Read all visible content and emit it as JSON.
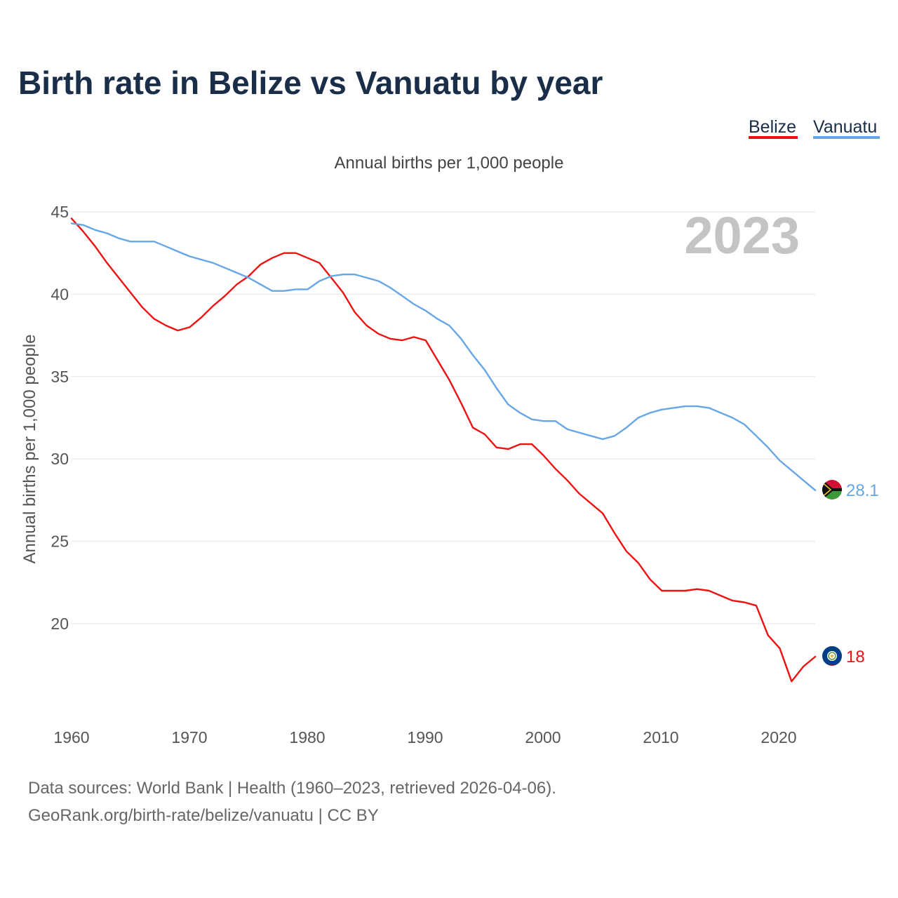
{
  "chart_data": {
    "type": "line",
    "title": "Birth rate in Belize vs Vanuatu by year",
    "subtitle": "Annual births per 1,000 people",
    "ylabel": "Annual births per 1,000 people",
    "xlabel": "",
    "year_stamp": "2023",
    "xlim": [
      1960,
      2023
    ],
    "ylim": [
      15,
      45
    ],
    "x_ticks": [
      1960,
      1970,
      1980,
      1990,
      2000,
      2010,
      2020
    ],
    "y_ticks": [
      20,
      25,
      30,
      35,
      40,
      45
    ],
    "grid": true,
    "legend_position": "top-right",
    "x": [
      1960,
      1961,
      1962,
      1963,
      1964,
      1965,
      1966,
      1967,
      1968,
      1969,
      1970,
      1971,
      1972,
      1973,
      1974,
      1975,
      1976,
      1977,
      1978,
      1979,
      1980,
      1981,
      1982,
      1983,
      1984,
      1985,
      1986,
      1987,
      1988,
      1989,
      1990,
      1991,
      1992,
      1993,
      1994,
      1995,
      1996,
      1997,
      1998,
      1999,
      2000,
      2001,
      2002,
      2003,
      2004,
      2005,
      2006,
      2007,
      2008,
      2009,
      2010,
      2011,
      2012,
      2013,
      2014,
      2015,
      2016,
      2017,
      2018,
      2019,
      2020,
      2021,
      2022,
      2023
    ],
    "series": [
      {
        "name": "Belize",
        "color": "#ee1111",
        "end_label": "18",
        "flag": "belize-flag",
        "values": [
          44.6,
          43.8,
          42.9,
          41.9,
          41.0,
          40.1,
          39.2,
          38.5,
          38.1,
          37.8,
          38.0,
          38.6,
          39.3,
          39.9,
          40.6,
          41.1,
          41.8,
          42.2,
          42.5,
          42.5,
          42.2,
          41.9,
          41.0,
          40.1,
          38.9,
          38.1,
          37.6,
          37.3,
          37.2,
          37.4,
          37.2,
          36.0,
          34.8,
          33.4,
          31.9,
          31.5,
          30.7,
          30.6,
          30.9,
          30.9,
          30.2,
          29.4,
          28.7,
          27.9,
          27.3,
          26.7,
          25.5,
          24.4,
          23.7,
          22.7,
          22.0,
          22.0,
          22.0,
          22.1,
          22.0,
          21.7,
          21.4,
          21.3,
          21.1,
          19.3,
          18.5,
          16.5,
          17.4,
          18.0
        ]
      },
      {
        "name": "Vanuatu",
        "color": "#66a6e6",
        "end_label": "28.1",
        "flag": "vanuatu-flag",
        "values": [
          44.3,
          44.2,
          43.9,
          43.7,
          43.4,
          43.2,
          43.2,
          43.2,
          42.9,
          42.6,
          42.3,
          42.1,
          41.9,
          41.6,
          41.3,
          41.0,
          40.6,
          40.2,
          40.2,
          40.3,
          40.3,
          40.8,
          41.1,
          41.2,
          41.2,
          41.0,
          40.8,
          40.4,
          39.9,
          39.4,
          39.0,
          38.5,
          38.1,
          37.3,
          36.3,
          35.4,
          34.3,
          33.3,
          32.8,
          32.4,
          32.3,
          32.3,
          31.8,
          31.6,
          31.4,
          31.2,
          31.4,
          31.9,
          32.5,
          32.8,
          33.0,
          33.1,
          33.2,
          33.2,
          33.1,
          32.8,
          32.5,
          32.1,
          31.4,
          30.7,
          29.9,
          29.3,
          28.7,
          28.1
        ]
      }
    ]
  },
  "footer": {
    "line1": "Data sources: World Bank | Health (1960–2023, retrieved 2026-04-06).",
    "line2": "GeoRank.org/birth-rate/belize/vanuatu | CC BY"
  }
}
